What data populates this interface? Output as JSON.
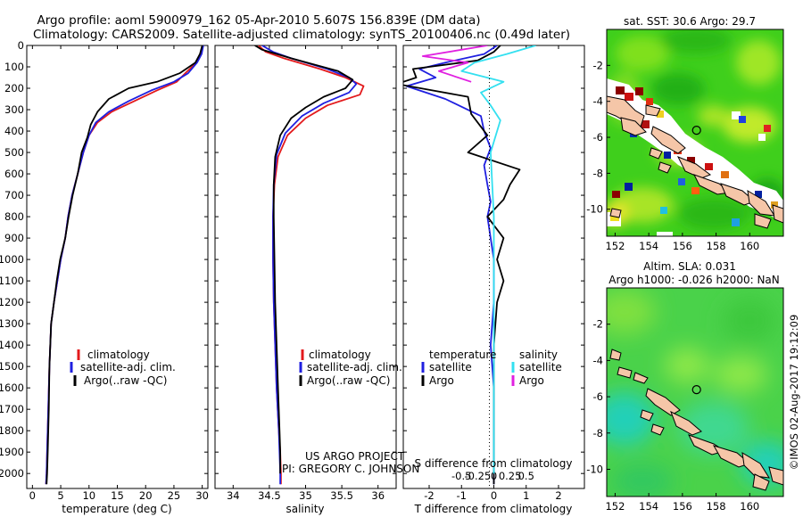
{
  "header": {
    "line1": "Argo profile: aoml 5900979_162 05-Apr-2010 5.607S 156.839E (DM data)",
    "line2": "Climatology: CARS2009. Satellite-adjusted climatology: synTS_20100406.nc (0.49d later)"
  },
  "colors": {
    "climatology": "#e31a1c",
    "satellite": "#1f1fe0",
    "argo": "#000000",
    "salinity_sat": "#33e0f0",
    "salinity_argo": "#e020e0"
  },
  "credits": {
    "project": "US ARGO PROJECT",
    "pi": "PI: GREGORY C. JOHNSON",
    "imos": "©IMOS 02-Aug-2017 19:12:09"
  },
  "chart_data": [
    {
      "type": "line",
      "id": "temperature",
      "xlabel": "temperature (deg C)",
      "ylabel": "",
      "xlim": [
        -1,
        31
      ],
      "ylim": [
        2070,
        0
      ],
      "xticks": [
        0,
        5,
        10,
        15,
        20,
        25,
        30
      ],
      "yticks": [
        0,
        100,
        200,
        300,
        400,
        500,
        600,
        700,
        800,
        900,
        1000,
        1100,
        1200,
        1300,
        1400,
        1500,
        1600,
        1700,
        1800,
        1900,
        2000
      ],
      "legend": {
        "placement": "middle",
        "entries": [
          "climatology",
          "satellite-adj. clim.",
          "Argo(..raw -QC)"
        ]
      },
      "series": [
        {
          "name": "climatology",
          "color": "#e31a1c",
          "x": [
            30.1,
            29.8,
            29.0,
            27.0,
            25.5,
            22.0,
            18.0,
            14.0,
            11.5,
            10.0,
            9.0,
            8.0,
            7.0,
            6.3,
            5.8,
            5.0,
            4.4,
            3.8,
            3.3,
            3.0,
            2.8,
            2.6,
            2.5,
            2.4
          ],
          "y": [
            0,
            40,
            80,
            130,
            170,
            210,
            260,
            310,
            360,
            420,
            500,
            600,
            700,
            800,
            900,
            1000,
            1100,
            1200,
            1300,
            1500,
            1700,
            1900,
            2000,
            2050
          ]
        },
        {
          "name": "satellite-adj. clim.",
          "color": "#1f1fe0",
          "x": [
            30.2,
            29.9,
            29.1,
            27.5,
            25.0,
            21.0,
            17.0,
            13.5,
            11.2,
            10.0,
            9.0,
            8.0,
            7.0,
            6.3,
            5.8,
            5.0,
            4.4,
            3.8,
            3.3,
            3.0,
            2.8,
            2.6,
            2.5,
            2.4
          ],
          "y": [
            0,
            40,
            80,
            130,
            170,
            210,
            260,
            310,
            360,
            420,
            500,
            600,
            700,
            800,
            900,
            1000,
            1100,
            1200,
            1300,
            1500,
            1700,
            1900,
            2000,
            2050
          ]
        },
        {
          "name": "Argo(..raw -QC)",
          "color": "#000000",
          "x": [
            30.0,
            29.6,
            28.8,
            26.0,
            22.0,
            17.0,
            13.5,
            11.5,
            10.3,
            9.7,
            8.7,
            8.0,
            7.1,
            6.4,
            5.8,
            4.9,
            4.3,
            3.8,
            3.3,
            3.0,
            2.9,
            2.7,
            2.6,
            2.5
          ],
          "y": [
            0,
            40,
            80,
            130,
            170,
            200,
            250,
            310,
            370,
            430,
            500,
            600,
            700,
            800,
            900,
            1000,
            1100,
            1200,
            1300,
            1500,
            1700,
            1900,
            2000,
            2050
          ]
        }
      ]
    },
    {
      "type": "line",
      "id": "salinity",
      "xlabel": "salinity",
      "ylabel": "",
      "xlim": [
        33.75,
        36.25
      ],
      "ylim": [
        2070,
        0
      ],
      "xticks": [
        34,
        34.5,
        35,
        35.5,
        36
      ],
      "xticklabels": [
        "34",
        "34.5",
        "35",
        "35.5",
        "36"
      ],
      "legend": {
        "placement": "middle",
        "entries": [
          "climatology",
          "satellite-adj. clim.",
          "Argo(..raw -QC)"
        ]
      },
      "series": [
        {
          "name": "climatology",
          "color": "#e31a1c",
          "x": [
            34.35,
            34.45,
            34.7,
            35.2,
            35.55,
            35.8,
            35.75,
            35.3,
            35.0,
            34.75,
            34.62,
            34.57,
            34.55,
            34.55,
            34.56,
            34.58,
            34.6,
            34.63,
            34.65,
            34.66,
            34.66
          ],
          "y": [
            0,
            30,
            60,
            110,
            150,
            190,
            230,
            280,
            340,
            420,
            520,
            650,
            800,
            1000,
            1200,
            1400,
            1600,
            1800,
            1900,
            2000,
            2050
          ]
        },
        {
          "name": "satellite-adj. clim.",
          "color": "#1f1fe0",
          "x": [
            34.4,
            34.55,
            34.8,
            35.3,
            35.6,
            35.7,
            35.6,
            35.25,
            34.95,
            34.72,
            34.6,
            34.56,
            34.55,
            34.55,
            34.56,
            34.58,
            34.6,
            34.63,
            34.64,
            34.65,
            34.65
          ],
          "y": [
            0,
            30,
            60,
            110,
            150,
            180,
            220,
            270,
            330,
            410,
            510,
            650,
            800,
            1000,
            1200,
            1400,
            1600,
            1800,
            1900,
            2000,
            2050
          ]
        },
        {
          "name": "Argo(..raw -QC)",
          "color": "#000000",
          "x": [
            34.3,
            34.4,
            34.8,
            35.45,
            35.65,
            35.55,
            35.25,
            35.0,
            34.8,
            34.65,
            34.58,
            34.56,
            34.56,
            34.57,
            34.58,
            34.6,
            34.62,
            34.64,
            34.65,
            34.65
          ],
          "y": [
            0,
            20,
            60,
            120,
            160,
            200,
            240,
            290,
            340,
            420,
            520,
            650,
            800,
            1000,
            1200,
            1400,
            1600,
            1800,
            1900,
            2000
          ]
        }
      ]
    },
    {
      "type": "line",
      "id": "differences",
      "xlabel": "T difference from climatology",
      "xlabel_top": "S difference from climatology",
      "ylabel": "",
      "xlim": [
        -2.8,
        2.8
      ],
      "ylim": [
        2070,
        0
      ],
      "xticks_T": [
        -2,
        -1,
        0,
        1,
        2
      ],
      "xticks_S": [
        -0.5,
        -0.25,
        0,
        0.25,
        0.5
      ],
      "xticklabels_S": [
        "-0.5",
        "-0.25",
        "0",
        "0.25",
        "0.5"
      ],
      "legend": {
        "placement": "middle",
        "entries": [
          "temperature",
          "satellite",
          "Argo",
          "salinity",
          "satellite",
          "Argo"
        ]
      },
      "series": [
        {
          "name": "temperature satellite",
          "color": "#1f1fe0",
          "x": [
            0.1,
            -0.3,
            -1.5,
            -2.3,
            -1.8,
            -2.7,
            -1.5,
            -0.4,
            -0.3,
            -0.1,
            -0.3,
            -0.2,
            -0.1,
            -0.2,
            -0.1,
            0.0,
            0.0,
            -0.1,
            0.0,
            0.0,
            0.0,
            0.0
          ],
          "y": [
            0,
            40,
            80,
            110,
            150,
            190,
            250,
            330,
            400,
            480,
            560,
            650,
            730,
            800,
            900,
            1000,
            1200,
            1400,
            1600,
            1800,
            2000,
            2050
          ]
        },
        {
          "name": "temperature Argo",
          "color": "#000000",
          "x": [
            0.2,
            0.0,
            -0.5,
            -2.5,
            -2.4,
            -3.0,
            -0.8,
            -0.7,
            -0.2,
            -0.8,
            0.8,
            0.5,
            0.3,
            -0.2,
            0.3,
            0.1,
            0.3,
            0.1,
            0.0,
            0.0,
            0.0,
            0.0,
            0.0
          ],
          "y": [
            0,
            30,
            70,
            110,
            150,
            180,
            240,
            320,
            420,
            500,
            580,
            650,
            720,
            800,
            900,
            1000,
            1100,
            1200,
            1400,
            1600,
            1800,
            2000,
            2050
          ]
        },
        {
          "name": "salinity satellite",
          "color": "#33e0f0",
          "x": [
            1.3,
            0.4,
            -0.6,
            -1.0,
            0.3,
            -0.4,
            -0.1,
            0.2,
            -0.1,
            0.0,
            0.0,
            0.0,
            0.0,
            0.0
          ],
          "y": [
            0,
            40,
            80,
            120,
            170,
            220,
            280,
            350,
            500,
            800,
            1100,
            1400,
            1700,
            2000
          ]
        },
        {
          "name": "salinity Argo",
          "color": "#e020e0",
          "x": [
            -0.2,
            -2.2,
            -0.8,
            -1.7,
            -0.7
          ],
          "y": [
            0,
            50,
            80,
            120,
            170
          ]
        }
      ]
    },
    {
      "type": "heatmap",
      "id": "sst-map",
      "title": "sat. SST: 30.6 Argo: 29.7",
      "xlim": [
        151.5,
        162
      ],
      "ylim": [
        -11.5,
        0
      ],
      "xticks": [
        152,
        154,
        156,
        158,
        160
      ],
      "yticks": [
        -2,
        -4,
        -6,
        -8,
        -10
      ],
      "marker": {
        "lon": 156.839,
        "lat": -5.607
      }
    },
    {
      "type": "heatmap",
      "id": "sla-map",
      "title": "Altim. SLA: 0.031",
      "subtitle": "Argo h1000: -0.026 h2000: NaN",
      "xlim": [
        151.5,
        162
      ],
      "ylim": [
        -11.5,
        0
      ],
      "xticks": [
        152,
        154,
        156,
        158,
        160
      ],
      "yticks": [
        -2,
        -4,
        -6,
        -8,
        -10
      ],
      "marker": {
        "lon": 156.839,
        "lat": -5.607
      }
    }
  ]
}
